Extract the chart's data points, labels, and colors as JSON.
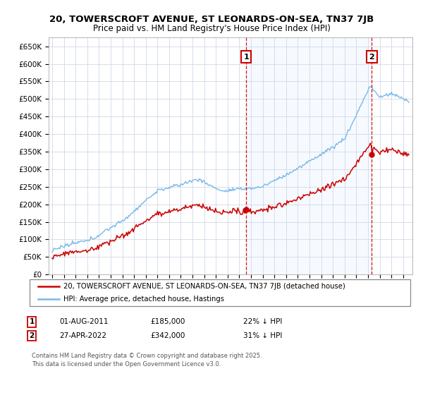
{
  "title": "20, TOWERSCROFT AVENUE, ST LEONARDS-ON-SEA, TN37 7JB",
  "subtitle": "Price paid vs. HM Land Registry's House Price Index (HPI)",
  "ylabel_ticks": [
    "£0",
    "£50K",
    "£100K",
    "£150K",
    "£200K",
    "£250K",
    "£300K",
    "£350K",
    "£400K",
    "£450K",
    "£500K",
    "£550K",
    "£600K",
    "£650K"
  ],
  "ylim": [
    0,
    675000
  ],
  "ytick_vals": [
    0,
    50000,
    100000,
    150000,
    200000,
    250000,
    300000,
    350000,
    400000,
    450000,
    500000,
    550000,
    600000,
    650000
  ],
  "legend_line1": "20, TOWERSCROFT AVENUE, ST LEONARDS-ON-SEA, TN37 7JB (detached house)",
  "legend_line2": "HPI: Average price, detached house, Hastings",
  "transaction1_date": "01-AUG-2011",
  "transaction1_price": "£185,000",
  "transaction1_hpi": "22% ↓ HPI",
  "transaction2_date": "27-APR-2022",
  "transaction2_price": "£342,000",
  "transaction2_hpi": "31% ↓ HPI",
  "footnote": "Contains HM Land Registry data © Crown copyright and database right 2025.\nThis data is licensed under the Open Government Licence v3.0.",
  "hpi_color": "#7ab8e8",
  "price_color": "#cc0000",
  "marker_box_color": "#cc0000",
  "vline_color": "#cc0000",
  "background_color": "#ffffff",
  "grid_color": "#d0d8e8",
  "shade_color": "#ddeeff",
  "t1_x": 2011.583,
  "t2_x": 2022.333,
  "t1_y": 185000,
  "t2_y": 342000,
  "xlim_left": 1994.7,
  "xlim_right": 2025.8
}
